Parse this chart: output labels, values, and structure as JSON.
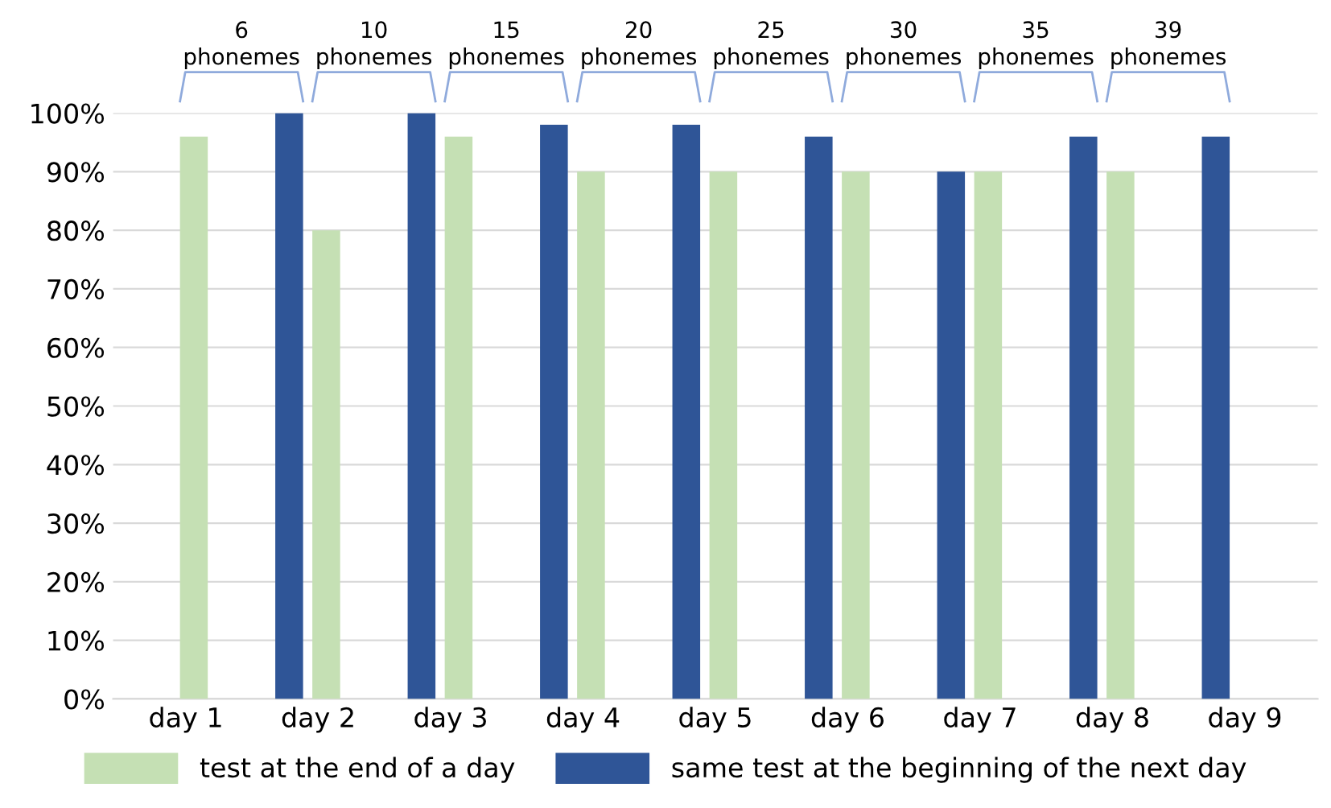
{
  "chart_data": {
    "type": "bar",
    "categories": [
      "day 1",
      "day 2",
      "day 3",
      "day 4",
      "day 5",
      "day 6",
      "day 7",
      "day 8",
      "day 9"
    ],
    "series": [
      {
        "name": "test at the end of a day",
        "color": "#c5e0b4",
        "values": [
          96,
          80,
          96,
          90,
          90,
          90,
          90,
          90,
          null
        ]
      },
      {
        "name": "same test at the beginning of the next day",
        "color": "#2f5597",
        "values": [
          null,
          100,
          100,
          98,
          98,
          96,
          90,
          96,
          96
        ]
      }
    ],
    "ylim": [
      0,
      100
    ],
    "yticks": [
      {
        "value": 0,
        "label": "0%"
      },
      {
        "value": 10,
        "label": "10%"
      },
      {
        "value": 20,
        "label": "20%"
      },
      {
        "value": 30,
        "label": "30%"
      },
      {
        "value": 40,
        "label": "40%"
      },
      {
        "value": 50,
        "label": "50%"
      },
      {
        "value": 60,
        "label": "60%"
      },
      {
        "value": 70,
        "label": "70%"
      },
      {
        "value": 80,
        "label": "80%"
      },
      {
        "value": 90,
        "label": "90%"
      },
      {
        "value": 100,
        "label": "100%"
      }
    ],
    "grid": "y",
    "legend": "bottom",
    "annotations": [
      "6\nphonemes",
      "10\nphonemes",
      "15\nphonemes",
      "20\nphonemes",
      "25\nphonemes",
      "30\nphonemes",
      "35\nphonemes",
      "39\nphonemes"
    ]
  }
}
